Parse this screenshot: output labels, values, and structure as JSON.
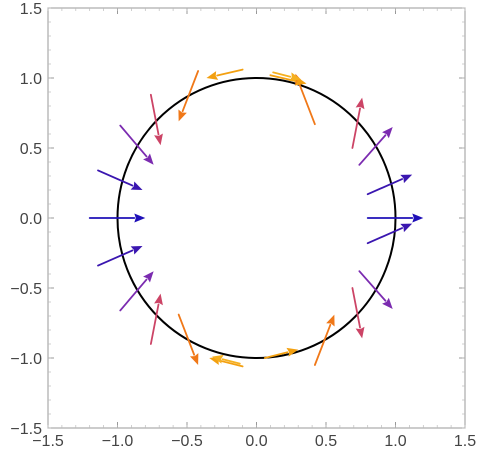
{
  "chart_data": {
    "type": "vector-field",
    "title": "",
    "xlabel": "",
    "ylabel": "",
    "xlim": [
      -1.5,
      1.5
    ],
    "ylim": [
      -1.5,
      1.5
    ],
    "grid": false,
    "x_ticks": [
      -1.5,
      -1.0,
      -0.5,
      0.0,
      0.5,
      1.0,
      1.5
    ],
    "y_ticks": [
      -1.5,
      -1.0,
      -0.5,
      0.0,
      0.5,
      1.0,
      1.5
    ],
    "x_tick_labels": [
      "−1.5",
      "−1.0",
      "−0.5",
      "0.0",
      "0.5",
      "1.0",
      "1.5"
    ],
    "y_tick_labels": [
      "−1.5",
      "−1.0",
      "−0.5",
      "0.0",
      "0.5",
      "1.0",
      "1.5"
    ],
    "curve": {
      "shape": "circle",
      "center": [
        0,
        0
      ],
      "radius": 1.0,
      "color": "#000000"
    },
    "arrows": [
      {
        "x": 0.8,
        "y": 0.0,
        "dx": 0.4,
        "dy": 0.0,
        "color": "#1f10b8"
      },
      {
        "x": 0.8,
        "y": -0.18,
        "dx": 0.32,
        "dy": 0.14,
        "color": "#3a16b0"
      },
      {
        "x": -1.2,
        "y": 0.0,
        "dx": 0.4,
        "dy": 0.0,
        "color": "#1f10b8"
      },
      {
        "x": -1.14,
        "y": 0.34,
        "dx": 0.32,
        "dy": -0.14,
        "color": "#3a16b0"
      },
      {
        "x": 0.8,
        "y": 0.17,
        "dx": 0.32,
        "dy": 0.14,
        "color": "#3a16b0"
      },
      {
        "x": -1.14,
        "y": -0.34,
        "dx": 0.32,
        "dy": 0.14,
        "color": "#3a16b0"
      },
      {
        "x": 0.74,
        "y": 0.38,
        "dx": 0.24,
        "dy": 0.27,
        "color": "#7b2bb0"
      },
      {
        "x": -0.98,
        "y": 0.66,
        "dx": 0.24,
        "dy": -0.28,
        "color": "#7b2bb0"
      },
      {
        "x": 0.74,
        "y": -0.38,
        "dx": 0.24,
        "dy": -0.27,
        "color": "#7b2bb0"
      },
      {
        "x": -0.98,
        "y": -0.66,
        "dx": 0.24,
        "dy": 0.28,
        "color": "#7b2bb0"
      },
      {
        "x": 0.69,
        "y": 0.5,
        "dx": 0.07,
        "dy": 0.36,
        "color": "#cc4466"
      },
      {
        "x": -0.76,
        "y": 0.88,
        "dx": 0.07,
        "dy": -0.36,
        "color": "#cc4466"
      },
      {
        "x": 0.69,
        "y": -0.5,
        "dx": 0.07,
        "dy": -0.36,
        "color": "#cc4466"
      },
      {
        "x": -0.76,
        "y": -0.9,
        "dx": 0.07,
        "dy": 0.36,
        "color": "#cc4466"
      },
      {
        "x": 0.42,
        "y": 0.67,
        "dx": -0.14,
        "dy": 0.36,
        "color": "#f07818"
      },
      {
        "x": -0.42,
        "y": 1.05,
        "dx": -0.14,
        "dy": -0.36,
        "color": "#f07818"
      },
      {
        "x": 0.42,
        "y": -1.05,
        "dx": 0.14,
        "dy": 0.36,
        "color": "#f07818"
      },
      {
        "x": -0.56,
        "y": -0.69,
        "dx": 0.14,
        "dy": -0.36,
        "color": "#f07818"
      },
      {
        "x": 0.1,
        "y": 1.02,
        "dx": 0.26,
        "dy": -0.06,
        "color": "#f3a010"
      },
      {
        "x": -0.1,
        "y": 1.06,
        "dx": -0.26,
        "dy": -0.06,
        "color": "#f3a010"
      },
      {
        "x": 0.06,
        "y": -1.0,
        "dx": 0.24,
        "dy": 0.06,
        "color": "#f3a010"
      },
      {
        "x": -0.1,
        "y": -1.06,
        "dx": -0.24,
        "dy": 0.06,
        "color": "#f3a010"
      },
      {
        "x": 0.12,
        "y": 1.04,
        "dx": 0.2,
        "dy": -0.05,
        "color": "#f5b020"
      },
      {
        "x": -0.12,
        "y": -1.04,
        "dx": -0.2,
        "dy": 0.05,
        "color": "#f5b020"
      }
    ]
  }
}
